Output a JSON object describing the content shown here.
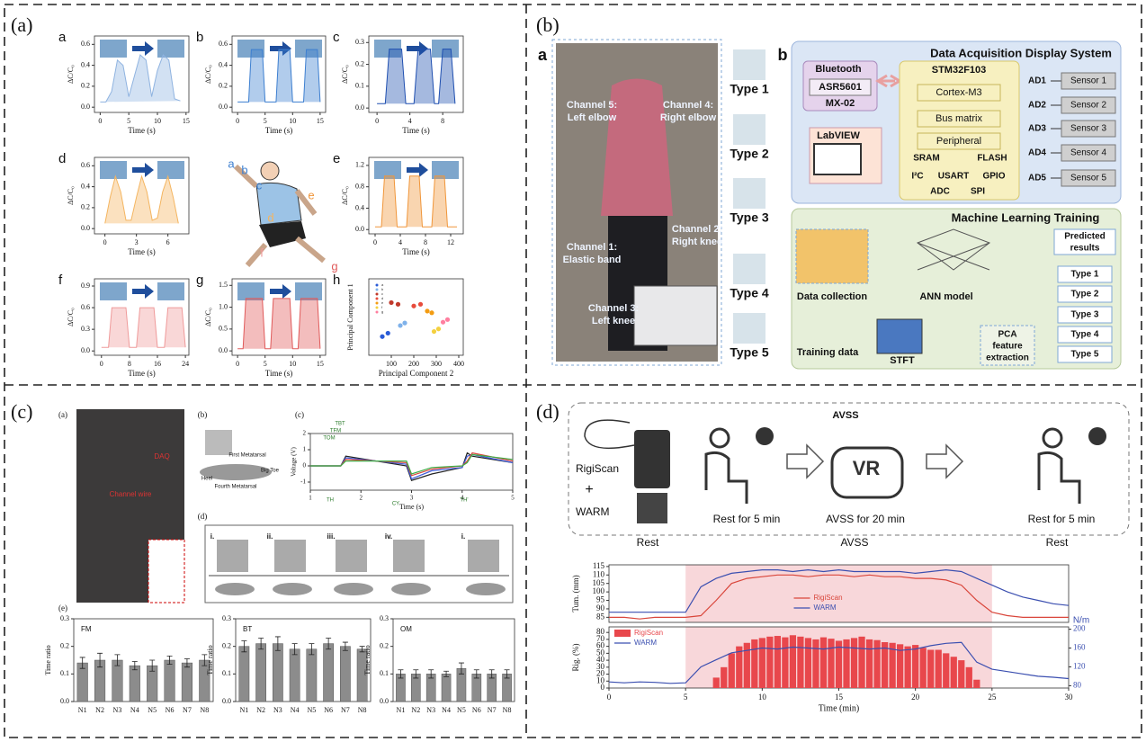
{
  "panels": {
    "a": {
      "label": "(a)",
      "person_labels": [
        "a",
        "b",
        "c",
        "d",
        "e",
        "f",
        "g"
      ]
    },
    "b": {
      "label": "(b)",
      "sub_a": "a",
      "sub_b": "b",
      "channels": [
        [
          "Channel 5:",
          "Left elbow"
        ],
        [
          "Channel 4:",
          "Right elbow"
        ],
        [
          "Channel 1:",
          "Elastic band"
        ],
        [
          "Channel 2:",
          "Right knee"
        ],
        [
          "Channel 3:",
          "Left knee"
        ]
      ],
      "types": [
        "Type 1",
        "Type 2",
        "Type 3",
        "Type 4",
        "Type 5"
      ],
      "daq": {
        "title": "Data Acquisition Display System",
        "bluetooth": "Bluetooth",
        "chip": "ASR5601",
        "module": "MX-02",
        "labview": "LabVIEW",
        "mcu": "STM32F103",
        "core": "Cortex-M3",
        "bus": "Bus matrix",
        "peripheral": "Peripheral",
        "sram": "SRAM",
        "flash": "FLASH",
        "i2c": "I²C",
        "usart": "USART",
        "gpio": "GPIO",
        "adc": "ADC",
        "spi": "SPI",
        "ad": [
          "AD1",
          "AD2",
          "AD3",
          "AD4",
          "AD5"
        ],
        "sensors": [
          "Sensor 1",
          "Sensor 2",
          "Sensor 3",
          "Sensor 4",
          "Sensor 5"
        ]
      },
      "ml": {
        "title": "Machine Learning Training",
        "data_collection": "Data collection",
        "ann": "ANN model",
        "predicted": [
          "Predicted",
          "results"
        ],
        "training": "Training data",
        "stft": "STFT",
        "pca": [
          "PCA",
          "feature",
          "extraction"
        ],
        "types": [
          "Type 1",
          "Type 2",
          "Type 3",
          "Type 4",
          "Type 5"
        ]
      }
    },
    "c": {
      "label": "(c)",
      "sub": [
        "(a)",
        "(b)",
        "(c)",
        "(d)",
        "(e)"
      ],
      "daq": "DAQ",
      "wire": "Channel wire",
      "foot": [
        "First Metatarsal",
        "Big Toe",
        "Heel",
        "Fourth Metatarsal"
      ],
      "annotations": [
        "TBT",
        "TFM",
        "TOM",
        "TH",
        "TH'",
        "CY"
      ],
      "steps": [
        "i.",
        "ii.",
        "iii.",
        "iv.",
        "i."
      ]
    },
    "d": {
      "label": "(d)",
      "avss": "AVSS",
      "rigiscan": "RigiScan",
      "plus": "+",
      "warm": "WARM",
      "vr": "VR",
      "steps": [
        "Rest for 5 min",
        "AVSS for 20 min",
        "Rest for 5 min"
      ],
      "phases": [
        "Rest",
        "AVSS",
        "Rest"
      ]
    }
  },
  "chart_data": [
    {
      "type": "area",
      "label": "a",
      "xlabel": "Time (s)",
      "ylabel": "ΔC/C₀",
      "color": "#8fb3e0",
      "x": [
        0,
        1,
        2,
        3,
        4,
        5,
        6,
        7,
        8,
        9,
        10,
        11,
        12,
        13,
        14
      ],
      "values": [
        0.05,
        0.05,
        0.15,
        0.45,
        0.4,
        0.1,
        0.3,
        0.5,
        0.45,
        0.1,
        0.35,
        0.5,
        0.45,
        0.08,
        0.06
      ],
      "xlim": [
        -1,
        15.5
      ],
      "xticks": [
        0,
        5,
        10,
        15
      ],
      "ylim": [
        -0.05,
        0.68
      ],
      "yticks": [
        {
          "value": 0,
          "label": "0.0"
        },
        0.2,
        0.4,
        0.6
      ]
    },
    {
      "type": "area",
      "label": "b",
      "xlabel": "Time (s)",
      "ylabel": "ΔC/C₀",
      "color": "#3d7fd0",
      "x": [
        0,
        2,
        2.5,
        4.5,
        5,
        7,
        7.5,
        9.5,
        10,
        12,
        12.5,
        14.5,
        15
      ],
      "values": [
        0.05,
        0.05,
        0.55,
        0.55,
        0.05,
        0.05,
        0.55,
        0.55,
        0.05,
        0.05,
        0.55,
        0.55,
        0.05
      ],
      "xlim": [
        -1,
        16
      ],
      "xticks": [
        0,
        5,
        10,
        15
      ],
      "ylim": [
        -0.05,
        0.68
      ],
      "yticks": [
        {
          "value": 0,
          "label": "0.0"
        },
        0.2,
        0.4,
        0.6
      ]
    },
    {
      "type": "area",
      "label": "c",
      "xlabel": "Time (s)",
      "ylabel": "ΔC/C₀",
      "color": "#1f4fb0",
      "x": [
        0,
        1,
        1.5,
        3,
        3.5,
        4.5,
        5,
        6.5,
        7,
        7.5,
        8,
        9,
        9.5
      ],
      "values": [
        0.02,
        0.02,
        0.27,
        0.27,
        0.02,
        0.02,
        0.27,
        0.27,
        0.02,
        0.02,
        0.27,
        0.27,
        0.02
      ],
      "xlim": [
        -1,
        10.5
      ],
      "xticks": [
        0,
        4,
        8
      ],
      "ylim": [
        -0.02,
        0.33
      ],
      "yticks": [
        {
          "value": 0,
          "label": "0.0"
        },
        0.1,
        0.2,
        0.3
      ]
    },
    {
      "type": "area",
      "label": "d",
      "xlabel": "Time (s)",
      "ylabel": "ΔC/C₀",
      "color": "#f4b560",
      "x": [
        0,
        0.5,
        1,
        1.5,
        2,
        2.5,
        3,
        3.5,
        4,
        4.5,
        5,
        5.5,
        6,
        6.5,
        7
      ],
      "values": [
        0.05,
        0.3,
        0.5,
        0.35,
        0.08,
        0.08,
        0.3,
        0.5,
        0.35,
        0.08,
        0.1,
        0.35,
        0.5,
        0.3,
        0.05
      ],
      "xlim": [
        -1,
        8
      ],
      "xticks": [
        0,
        3,
        6
      ],
      "ylim": [
        -0.05,
        0.68
      ],
      "yticks": [
        {
          "value": 0,
          "label": "0.0"
        },
        0.2,
        0.4,
        0.6
      ]
    },
    {
      "type": "area",
      "label": "e",
      "xlabel": "Time (s)",
      "ylabel": "ΔC/C₀",
      "color": "#f0963a",
      "x": [
        0,
        1,
        1.5,
        3,
        3.5,
        5,
        5.5,
        7,
        7.5,
        9,
        9.5,
        11,
        11.5,
        13
      ],
      "values": [
        0.05,
        0.05,
        1.0,
        1.0,
        0.05,
        0.05,
        1.0,
        1.0,
        0.05,
        0.05,
        1.0,
        1.0,
        0.05,
        0.05
      ],
      "xlim": [
        -1,
        14
      ],
      "xticks": [
        0,
        4,
        8,
        12
      ],
      "ylim": [
        -0.08,
        1.35
      ],
      "yticks": [
        {
          "value": 0,
          "label": "0.0"
        },
        0.4,
        0.8,
        1.2
      ]
    },
    {
      "type": "area",
      "label": "f",
      "xlabel": "Time (s)",
      "ylabel": "ΔC/C₀",
      "color": "#ef9a9a",
      "x": [
        0,
        2,
        3,
        7,
        8,
        10,
        11,
        15,
        16,
        18,
        19,
        23,
        24
      ],
      "values": [
        0.05,
        0.05,
        0.6,
        0.6,
        0.05,
        0.05,
        0.6,
        0.6,
        0.05,
        0.05,
        0.6,
        0.6,
        0.05
      ],
      "xlim": [
        -2,
        25
      ],
      "xticks": [
        0,
        8,
        16,
        24
      ],
      "ylim": [
        -0.06,
        1.0
      ],
      "yticks": [
        {
          "value": 0,
          "label": "0.0"
        },
        0.3,
        0.6,
        0.9
      ]
    },
    {
      "type": "area",
      "label": "g",
      "xlabel": "Time (s)",
      "ylabel": "ΔC/C₀",
      "color": "#e05a5a",
      "x": [
        0,
        1,
        1.5,
        4.5,
        5,
        6,
        6.5,
        9.5,
        10,
        11,
        11.5,
        14.5,
        15
      ],
      "values": [
        0.05,
        0.05,
        1.2,
        1.2,
        0.05,
        0.05,
        1.2,
        1.2,
        0.05,
        0.05,
        1.2,
        1.2,
        0.05
      ],
      "xlim": [
        -1,
        16
      ],
      "xticks": [
        0,
        5,
        10,
        15
      ],
      "ylim": [
        -0.1,
        1.65
      ],
      "yticks": [
        {
          "value": 0,
          "label": "0.0"
        },
        0.5,
        {
          "value": 1,
          "label": "1.0"
        },
        1.5
      ]
    },
    {
      "type": "scatter",
      "label": "h",
      "xlabel": "Principal Component 2",
      "ylabel": "Principal Component 1",
      "legend": "upper left",
      "xlim": [
        0,
        420
      ],
      "xticks": [
        100,
        200,
        300,
        400
      ],
      "ylim": [
        0,
        9
      ],
      "series": [
        {
          "name": "a",
          "color": "#2a5bd7",
          "x": [
            60,
            85
          ],
          "values": [
            2.2,
            2.6
          ]
        },
        {
          "name": "b",
          "color": "#7fb2ea",
          "x": [
            140,
            160
          ],
          "values": [
            3.5,
            3.8
          ]
        },
        {
          "name": "c",
          "color": "#c0392b",
          "x": [
            100,
            130
          ],
          "values": [
            6.2,
            6.0
          ]
        },
        {
          "name": "d",
          "color": "#e74c3c",
          "x": [
            200,
            230
          ],
          "values": [
            5.8,
            6.0
          ]
        },
        {
          "name": "e",
          "color": "#f39c12",
          "x": [
            260,
            280
          ],
          "values": [
            5.2,
            5.0
          ]
        },
        {
          "name": "f",
          "color": "#f4d03f",
          "x": [
            290,
            310
          ],
          "values": [
            2.8,
            3.1
          ]
        },
        {
          "name": "g",
          "color": "#ff7f9f",
          "x": [
            330,
            350
          ],
          "values": [
            3.9,
            4.2
          ]
        }
      ]
    },
    {
      "type": "line",
      "xlabel": "Time (s)",
      "ylabel": "Voltage (V)",
      "x": [
        1,
        1.6,
        1.7,
        2.9,
        3.0,
        3.4,
        4.0,
        4.1,
        4.2,
        5
      ],
      "xlim": [
        1,
        5
      ],
      "xticks": [
        1,
        2,
        3,
        4,
        5
      ],
      "ylim": [
        -1.5,
        2
      ],
      "yticks": [
        -1,
        0,
        1,
        2
      ],
      "series": [
        {
          "color": "#222222",
          "values": [
            0,
            0,
            0.6,
            0,
            -0.9,
            -0.5,
            -0.1,
            0.8,
            0.6,
            0.2
          ]
        },
        {
          "color": "#3b5bdb",
          "values": [
            0,
            0,
            0.5,
            0.1,
            -0.8,
            -0.3,
            -0.1,
            0.6,
            0.7,
            0.2
          ]
        },
        {
          "color": "#d9463b",
          "values": [
            0,
            0,
            0.4,
            0.2,
            -0.6,
            -0.2,
            0,
            0.3,
            0.8,
            0.3
          ]
        },
        {
          "color": "#3fae49",
          "values": [
            0,
            0,
            0.3,
            0.3,
            -0.5,
            -0.1,
            0,
            0.2,
            0.7,
            0.4
          ]
        }
      ]
    },
    {
      "type": "bar",
      "title": "FM",
      "ylabel": "Time ratio",
      "color": "#8c8c8c",
      "categories": [
        "N1",
        "N2",
        "N3",
        "N4",
        "N5",
        "N6",
        "N7",
        "N8"
      ],
      "values": [
        0.14,
        0.15,
        0.15,
        0.13,
        0.13,
        0.15,
        0.14,
        0.15
      ],
      "errors": [
        0.02,
        0.025,
        0.02,
        0.015,
        0.02,
        0.015,
        0.015,
        0.02
      ],
      "ylim": [
        0,
        0.3
      ],
      "yticks": [
        {
          "value": 0,
          "label": "0.0"
        },
        0.1,
        0.2,
        0.3
      ]
    },
    {
      "type": "bar",
      "title": "BT",
      "ylabel": "Time ratio",
      "color": "#8c8c8c",
      "categories": [
        "N1",
        "N2",
        "N3",
        "N4",
        "N5",
        "N6",
        "N7",
        "N8"
      ],
      "values": [
        0.2,
        0.21,
        0.21,
        0.19,
        0.19,
        0.21,
        0.2,
        0.19
      ],
      "errors": [
        0.02,
        0.02,
        0.025,
        0.02,
        0.02,
        0.02,
        0.015,
        0.01
      ],
      "ylim": [
        0,
        0.3
      ],
      "yticks": [
        {
          "value": 0,
          "label": "0.0"
        },
        0.1,
        0.2,
        0.3
      ]
    },
    {
      "type": "bar",
      "title": "OM",
      "ylabel": "Time ratio",
      "color": "#8c8c8c",
      "categories": [
        "N1",
        "N2",
        "N3",
        "N4",
        "N5",
        "N6",
        "N7",
        "N8"
      ],
      "values": [
        0.1,
        0.1,
        0.1,
        0.1,
        0.12,
        0.1,
        0.1,
        0.1
      ],
      "errors": [
        0.015,
        0.015,
        0.015,
        0.01,
        0.02,
        0.015,
        0.015,
        0.015
      ],
      "ylim": [
        0,
        0.3
      ],
      "yticks": [
        {
          "value": 0,
          "label": "0.0"
        },
        0.1,
        0.2,
        0.3
      ]
    },
    {
      "type": "line",
      "ylabel": "Tum. (mm)",
      "legend": "center",
      "shade": [
        5,
        25
      ],
      "x": [
        0,
        1,
        2,
        3,
        4,
        5,
        6,
        7,
        8,
        9,
        10,
        11,
        12,
        13,
        14,
        15,
        16,
        17,
        18,
        19,
        20,
        21,
        22,
        23,
        24,
        25,
        26,
        27,
        28,
        29,
        30
      ],
      "xlim": [
        0,
        30
      ],
      "ylim": [
        82,
        116
      ],
      "yticks": [
        85,
        90,
        95,
        100,
        105,
        110,
        115
      ],
      "series": [
        {
          "name": "RigiScan",
          "color": "#d9463b",
          "values": [
            85,
            85,
            84,
            85,
            85,
            85,
            86,
            95,
            105,
            108,
            109,
            110,
            110,
            109,
            110,
            110,
            109,
            110,
            109,
            109,
            108,
            108,
            107,
            104,
            95,
            88,
            86,
            85,
            85,
            85,
            85
          ]
        },
        {
          "name": "WARM",
          "color": "#3b4fb0",
          "values": [
            88,
            88,
            88,
            88,
            88,
            88,
            103,
            108,
            111,
            112,
            113,
            113,
            112,
            113,
            112,
            113,
            112,
            112,
            112,
            112,
            111,
            112,
            113,
            112,
            108,
            104,
            100,
            97,
            95,
            93,
            92
          ]
        }
      ]
    },
    {
      "type": "combo",
      "xlabel": "Time (min)",
      "ylabel": "Rig. (%)",
      "y2label": "N/m",
      "legend": "upper left",
      "shade": [
        5,
        25
      ],
      "xlim": [
        0,
        30
      ],
      "xticks": [
        0,
        5,
        10,
        15,
        20,
        25,
        30
      ],
      "ylim": [
        0,
        88
      ],
      "yticks": [
        0,
        10,
        20,
        30,
        40,
        50,
        60,
        70,
        80
      ],
      "y2lim": [
        75,
        205
      ],
      "y2ticks": [
        80,
        120,
        160,
        200
      ],
      "series": [
        {
          "name": "RigiScan",
          "type": "bar",
          "color": "#e8474c",
          "x": [
            7,
            7.5,
            8,
            8.5,
            9,
            9.5,
            10,
            10.5,
            11,
            11.5,
            12,
            12.5,
            13,
            13.5,
            14,
            14.5,
            15,
            15.5,
            16,
            16.5,
            17,
            17.5,
            18,
            18.5,
            19,
            19.5,
            20,
            20.5,
            21,
            21.5,
            22,
            22.5,
            23,
            23.5,
            24
          ],
          "values": [
            15,
            30,
            50,
            60,
            65,
            70,
            72,
            74,
            75,
            73,
            76,
            74,
            72,
            70,
            73,
            71,
            68,
            70,
            72,
            74,
            70,
            69,
            66,
            65,
            63,
            60,
            62,
            58,
            55,
            55,
            50,
            45,
            40,
            30,
            12
          ]
        },
        {
          "name": "WARM",
          "type": "line",
          "axis": "y2",
          "color": "#3b4fb0",
          "x": [
            0,
            1,
            2,
            3,
            4,
            5,
            6,
            7,
            8,
            9,
            10,
            11,
            12,
            13,
            14,
            15,
            16,
            17,
            18,
            19,
            20,
            21,
            22,
            23,
            24,
            25,
            26,
            27,
            28,
            29,
            30
          ],
          "values": [
            88,
            86,
            88,
            87,
            85,
            86,
            120,
            135,
            150,
            155,
            160,
            158,
            162,
            160,
            158,
            162,
            160,
            158,
            160,
            155,
            158,
            165,
            170,
            172,
            130,
            115,
            110,
            105,
            100,
            98,
            95
          ]
        }
      ]
    }
  ]
}
